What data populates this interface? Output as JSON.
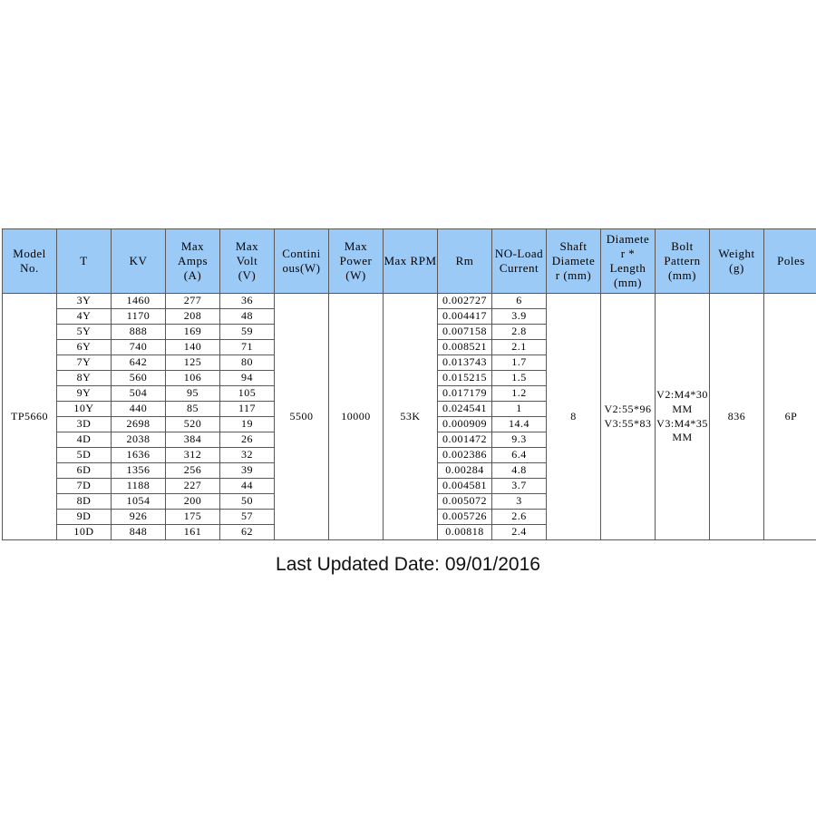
{
  "table": {
    "headers": {
      "model_no": "Model\nNo.",
      "t": "T",
      "kv": "KV",
      "max_amps": "Max\nAmps\n(A)",
      "max_volt": "Max\nVolt\n(V)",
      "continuous_w": "Contini\nous(W)",
      "max_power_w": "Max\nPower\n(W)",
      "max_rpm": "Max RPM",
      "rm": "Rm",
      "no_load_current": "NO-Load\nCurrent",
      "shaft_diameter_mm": "Shaft\nDiamete\nr (mm)",
      "diameter_length_mm": "Diamete\nr *\nLength\n(mm)",
      "bolt_pattern_mm": "Bolt\nPattern\n(mm)",
      "weight_g": "Weight\n(g)",
      "poles": "Poles"
    },
    "merged": {
      "model_no": "TP5660",
      "continuous_w": "5500",
      "max_power_w": "10000",
      "max_rpm": "53K",
      "shaft_diameter_mm": "8",
      "diameter_length_mm": "V2:55*96\nV3:55*83",
      "bolt_pattern_mm": "V2:M4*30\nMM\nV3:M4*35\nMM",
      "weight_g": "836",
      "poles": "6P"
    },
    "rows": [
      {
        "t": "3Y",
        "kv": "1460",
        "max_amps": "277",
        "max_volt": "36",
        "rm": "0.002727",
        "no_load_current": "6"
      },
      {
        "t": "4Y",
        "kv": "1170",
        "max_amps": "208",
        "max_volt": "48",
        "rm": "0.004417",
        "no_load_current": "3.9"
      },
      {
        "t": "5Y",
        "kv": "888",
        "max_amps": "169",
        "max_volt": "59",
        "rm": "0.007158",
        "no_load_current": "2.8"
      },
      {
        "t": "6Y",
        "kv": "740",
        "max_amps": "140",
        "max_volt": "71",
        "rm": "0.008521",
        "no_load_current": "2.1"
      },
      {
        "t": "7Y",
        "kv": "642",
        "max_amps": "125",
        "max_volt": "80",
        "rm": "0.013743",
        "no_load_current": "1.7"
      },
      {
        "t": "8Y",
        "kv": "560",
        "max_amps": "106",
        "max_volt": "94",
        "rm": "0.015215",
        "no_load_current": "1.5"
      },
      {
        "t": "9Y",
        "kv": "504",
        "max_amps": "95",
        "max_volt": "105",
        "rm": "0.017179",
        "no_load_current": "1.2"
      },
      {
        "t": "10Y",
        "kv": "440",
        "max_amps": "85",
        "max_volt": "117",
        "rm": "0.024541",
        "no_load_current": "1"
      },
      {
        "t": "3D",
        "kv": "2698",
        "max_amps": "520",
        "max_volt": "19",
        "rm": "0.000909",
        "no_load_current": "14.4"
      },
      {
        "t": "4D",
        "kv": "2038",
        "max_amps": "384",
        "max_volt": "26",
        "rm": "0.001472",
        "no_load_current": "9.3"
      },
      {
        "t": "5D",
        "kv": "1636",
        "max_amps": "312",
        "max_volt": "32",
        "rm": "0.002386",
        "no_load_current": "6.4"
      },
      {
        "t": "6D",
        "kv": "1356",
        "max_amps": "256",
        "max_volt": "39",
        "rm": "0.00284",
        "no_load_current": "4.8"
      },
      {
        "t": "7D",
        "kv": "1188",
        "max_amps": "227",
        "max_volt": "44",
        "rm": "0.004581",
        "no_load_current": "3.7"
      },
      {
        "t": "8D",
        "kv": "1054",
        "max_amps": "200",
        "max_volt": "50",
        "rm": "0.005072",
        "no_load_current": "3"
      },
      {
        "t": "9D",
        "kv": "926",
        "max_amps": "175",
        "max_volt": "57",
        "rm": "0.005726",
        "no_load_current": "2.6"
      },
      {
        "t": "10D",
        "kv": "848",
        "max_amps": "161",
        "max_volt": "62",
        "rm": "0.00818",
        "no_load_current": "2.4"
      }
    ]
  },
  "footer": {
    "last_updated": "Last Updated Date: 09/01/2016"
  },
  "colors": {
    "header_bg": "#9bcaf6",
    "border": "#595959",
    "text": "#000000",
    "page_bg": "#ffffff"
  }
}
